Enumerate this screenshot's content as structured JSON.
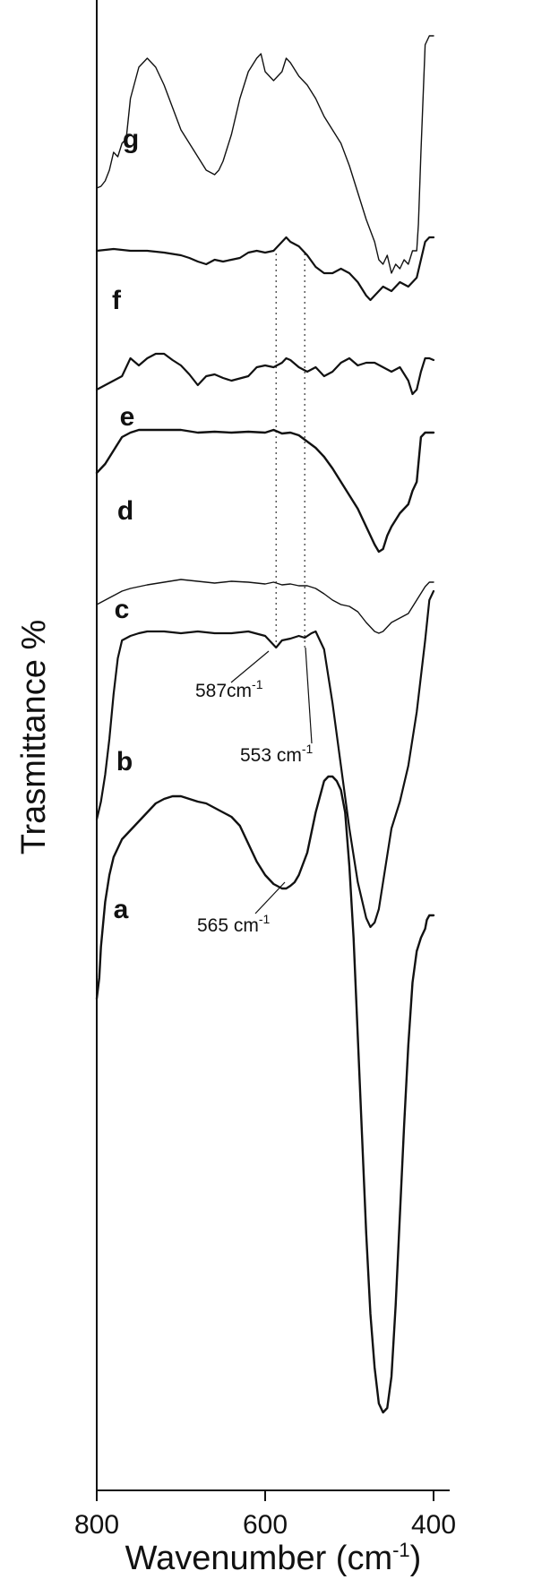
{
  "chart_data": {
    "type": "line",
    "title": "",
    "xlabel": "Wavenumber (cm",
    "xlabel_sup": "-1",
    "xlabel_end": ")",
    "ylabel": "Trasmittance %",
    "xlim": [
      800,
      400
    ],
    "x_reversed": true,
    "x_ticks": [
      800,
      600,
      400
    ],
    "y_ticks": [],
    "grid": false,
    "legend": "none",
    "line_color": "#111111",
    "series": [
      {
        "name": "g",
        "x": [
          800,
          795,
          790,
          785,
          780,
          775,
          770,
          765,
          760,
          750,
          740,
          730,
          720,
          710,
          700,
          690,
          680,
          670,
          660,
          655,
          650,
          640,
          630,
          620,
          610,
          605,
          600,
          590,
          580,
          575,
          570,
          560,
          550,
          540,
          530,
          520,
          510,
          500,
          490,
          480,
          470,
          465,
          460,
          455,
          450,
          445,
          440,
          435,
          430,
          425,
          420,
          418,
          415,
          410,
          405,
          400
        ],
        "y": [
          60,
          58,
          52,
          40,
          20,
          25,
          10,
          5,
          -40,
          -75,
          -85,
          -75,
          -55,
          -30,
          -5,
          10,
          25,
          40,
          45,
          40,
          30,
          0,
          -40,
          -70,
          -85,
          -90,
          -70,
          -60,
          -70,
          -85,
          -80,
          -65,
          -55,
          -40,
          -20,
          -5,
          10,
          35,
          65,
          95,
          120,
          140,
          145,
          135,
          155,
          145,
          150,
          140,
          145,
          130,
          130,
          100,
          20,
          -100,
          -110,
          -110
        ]
      },
      {
        "name": "f",
        "x": [
          800,
          780,
          760,
          740,
          720,
          700,
          690,
          680,
          670,
          660,
          650,
          640,
          630,
          620,
          610,
          600,
          590,
          580,
          575,
          570,
          560,
          550,
          540,
          530,
          520,
          510,
          500,
          490,
          480,
          475,
          470,
          460,
          450,
          440,
          430,
          420,
          410,
          405,
          400
        ],
        "y": [
          10,
          8,
          10,
          10,
          12,
          15,
          18,
          22,
          25,
          20,
          22,
          20,
          18,
          12,
          10,
          12,
          10,
          0,
          -5,
          0,
          5,
          15,
          28,
          35,
          35,
          30,
          35,
          45,
          60,
          65,
          60,
          50,
          55,
          45,
          50,
          40,
          0,
          -5,
          -5
        ]
      },
      {
        "name": "e",
        "x": [
          800,
          790,
          780,
          770,
          760,
          750,
          740,
          730,
          720,
          710,
          700,
          690,
          680,
          670,
          660,
          650,
          640,
          620,
          610,
          600,
          590,
          580,
          575,
          570,
          560,
          550,
          540,
          530,
          520,
          510,
          500,
          490,
          480,
          470,
          460,
          450,
          440,
          430,
          425,
          420,
          415,
          410,
          405,
          400
        ],
        "y": [
          35,
          30,
          25,
          20,
          0,
          8,
          0,
          -5,
          -5,
          2,
          8,
          18,
          30,
          20,
          18,
          22,
          25,
          20,
          10,
          8,
          10,
          5,
          0,
          2,
          10,
          15,
          10,
          20,
          15,
          5,
          0,
          8,
          5,
          5,
          10,
          15,
          10,
          25,
          40,
          35,
          15,
          0,
          0,
          2
        ]
      },
      {
        "name": "d",
        "x": [
          800,
          790,
          780,
          770,
          760,
          750,
          740,
          720,
          700,
          680,
          660,
          640,
          620,
          600,
          590,
          580,
          570,
          560,
          550,
          540,
          530,
          520,
          510,
          500,
          490,
          480,
          470,
          465,
          460,
          455,
          450,
          440,
          430,
          425,
          420,
          415,
          410,
          405,
          400
        ],
        "y": [
          40,
          30,
          15,
          0,
          -5,
          -8,
          -8,
          -8,
          -8,
          -5,
          -6,
          -5,
          -6,
          -5,
          -8,
          -4,
          -5,
          -2,
          5,
          12,
          22,
          35,
          50,
          65,
          80,
          100,
          120,
          128,
          125,
          110,
          100,
          85,
          75,
          60,
          50,
          0,
          -5,
          -5,
          -5
        ]
      },
      {
        "name": "c",
        "x": [
          800,
          790,
          780,
          770,
          760,
          750,
          740,
          720,
          700,
          680,
          660,
          640,
          620,
          600,
          590,
          580,
          570,
          560,
          550,
          540,
          530,
          520,
          510,
          500,
          490,
          480,
          470,
          465,
          460,
          450,
          440,
          430,
          420,
          410,
          405,
          400
        ],
        "y": [
          20,
          15,
          10,
          5,
          2,
          0,
          -2,
          -5,
          -8,
          -6,
          -4,
          -6,
          -5,
          -3,
          -5,
          -2,
          -3,
          -1,
          -1,
          2,
          8,
          15,
          20,
          22,
          28,
          40,
          50,
          52,
          50,
          40,
          35,
          30,
          15,
          0,
          -5,
          -5
        ]
      },
      {
        "name": "b",
        "x": [
          800,
          795,
          790,
          785,
          780,
          775,
          770,
          760,
          750,
          740,
          720,
          700,
          680,
          660,
          640,
          620,
          600,
          590,
          587,
          580,
          570,
          560,
          553,
          545,
          540,
          530,
          520,
          510,
          500,
          490,
          480,
          475,
          470,
          465,
          460,
          450,
          440,
          430,
          420,
          410,
          405,
          400
        ],
        "y": [
          200,
          180,
          150,
          110,
          60,
          20,
          0,
          -5,
          -8,
          -10,
          -10,
          -8,
          -10,
          -8,
          -8,
          -10,
          -5,
          5,
          8,
          0,
          -2,
          -5,
          -3,
          -8,
          -10,
          10,
          70,
          140,
          210,
          270,
          310,
          320,
          315,
          300,
          270,
          210,
          180,
          140,
          80,
          0,
          -45,
          -55
        ]
      },
      {
        "name": "a",
        "x": [
          800,
          797,
          795,
          790,
          785,
          780,
          775,
          770,
          760,
          750,
          740,
          730,
          720,
          710,
          700,
          690,
          680,
          670,
          660,
          650,
          640,
          630,
          620,
          610,
          600,
          590,
          580,
          575,
          570,
          565,
          560,
          550,
          540,
          530,
          525,
          520,
          515,
          510,
          505,
          500,
          495,
          490,
          485,
          480,
          475,
          470,
          465,
          460,
          455,
          450,
          445,
          440,
          435,
          430,
          425,
          420,
          415,
          410,
          408,
          405,
          402,
          400
        ],
        "y": [
          218,
          195,
          160,
          110,
          80,
          60,
          50,
          40,
          30,
          20,
          10,
          0,
          -5,
          -8,
          -8,
          -5,
          -2,
          0,
          5,
          10,
          15,
          25,
          45,
          65,
          80,
          90,
          95,
          95,
          92,
          88,
          80,
          55,
          10,
          -25,
          -30,
          -30,
          -25,
          -15,
          10,
          70,
          150,
          260,
          370,
          480,
          570,
          630,
          670,
          680,
          675,
          640,
          560,
          460,
          360,
          270,
          200,
          165,
          150,
          140,
          130,
          125,
          125,
          125
        ]
      }
    ],
    "curve_labels": [
      "g",
      "f",
      "e",
      "d",
      "c",
      "b",
      "a"
    ],
    "annotations": [
      {
        "text": "587cm",
        "sup": "-1",
        "x": 587
      },
      {
        "text": "553 cm",
        "sup": "-1",
        "x": 553
      },
      {
        "text": "565 cm",
        "sup": "-1",
        "x": 565
      }
    ]
  }
}
